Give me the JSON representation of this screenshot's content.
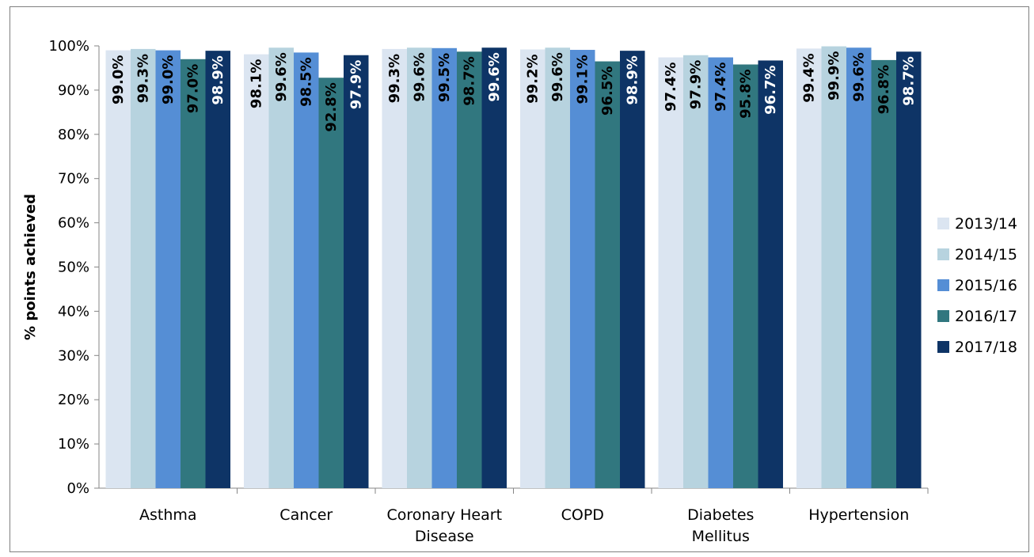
{
  "chart_data": {
    "type": "bar",
    "title": "",
    "xlabel": "",
    "ylabel": "% points achieved",
    "ylim": [
      0,
      100
    ],
    "y_ticks": [
      0,
      10,
      20,
      30,
      40,
      50,
      60,
      70,
      80,
      90,
      100
    ],
    "y_tick_format": "percent",
    "grid": false,
    "legend_position": "right",
    "categories": [
      [
        "Asthma"
      ],
      [
        "Cancer"
      ],
      [
        "Coronary Heart",
        "Disease"
      ],
      [
        "COPD"
      ],
      [
        "Diabetes",
        "Mellitus"
      ],
      [
        "Hypertension"
      ]
    ],
    "series": [
      {
        "name": "2013/14",
        "color": "#dbe5f1",
        "label_color": "#000000",
        "values": [
          99.0,
          98.1,
          99.3,
          99.2,
          97.4,
          99.4
        ]
      },
      {
        "name": "2014/15",
        "color": "#b7d3df",
        "label_color": "#000000",
        "values": [
          99.3,
          99.6,
          99.6,
          99.6,
          97.9,
          99.9
        ]
      },
      {
        "name": "2015/16",
        "color": "#558ed5",
        "label_color": "#000000",
        "values": [
          99.0,
          98.5,
          99.5,
          99.1,
          97.4,
          99.6
        ]
      },
      {
        "name": "2016/17",
        "color": "#31777f",
        "label_color": "#000000",
        "values": [
          97.0,
          92.8,
          98.7,
          96.5,
          95.8,
          96.8
        ]
      },
      {
        "name": "2017/18",
        "color": "#0e3466",
        "label_color": "#ffffff",
        "values": [
          98.9,
          97.9,
          99.6,
          98.9,
          96.7,
          98.7
        ]
      }
    ]
  }
}
